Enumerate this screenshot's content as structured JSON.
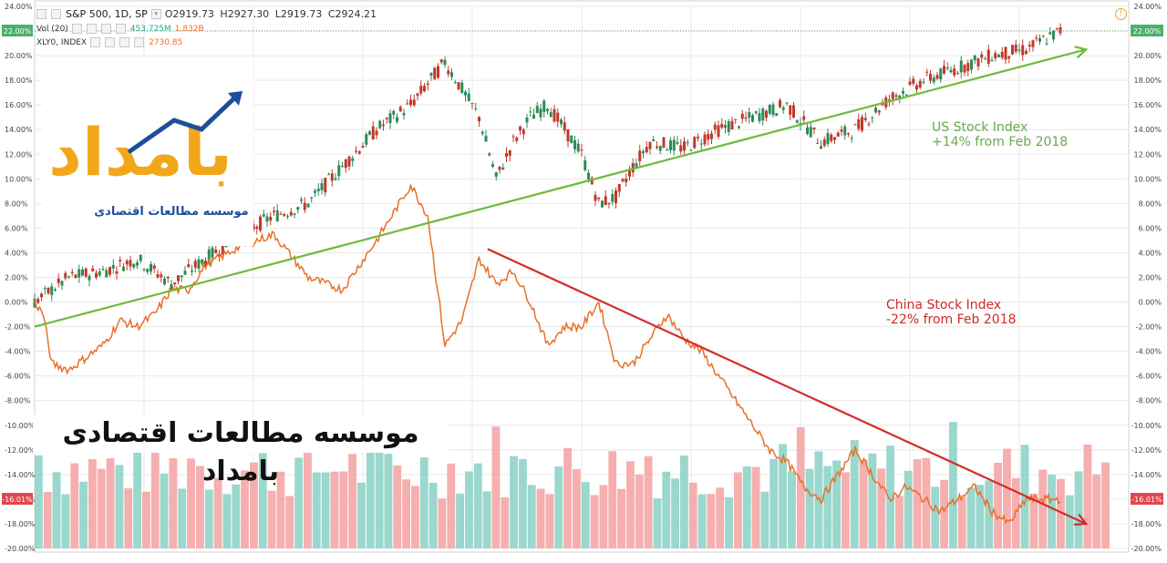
{
  "header": {
    "symbol": "S&P 500, 1D, SP",
    "open": "O2919.73",
    "high": "H2927.30",
    "low": "L2919.73",
    "close": "C2924.21",
    "volume_label": "Vol (20)",
    "volume_value": "453.725M",
    "volume_ma": "1.832B",
    "compare_label": "XLY0, INDEX",
    "compare_value": "2730.85"
  },
  "branding": {
    "logo_text": "بامداد",
    "logo_subtitle": "موسسه مطالعات اقتصادی",
    "caption": "موسسه مطالعات اقتصادی بامداد"
  },
  "colors": {
    "us_line": "#3aa33a",
    "us_trend": "#6dbb3c",
    "china_line": "#e8702a",
    "china_trend": "#d42b2b",
    "candle_up": "#2e8b57",
    "candle_down": "#c0392b",
    "vol_up": "#8fd3c8",
    "vol_down": "#f4a6a6",
    "grid": "#e8e8e8",
    "badge_green": "#4caf6a",
    "badge_red": "#e0474c"
  },
  "chart_data": {
    "type": "line",
    "x_unit": "trading days since start of chart window (not printed on axis)",
    "y_unit": "percent change",
    "ylim": [
      -20,
      24
    ],
    "y_ticks": [
      "24.00%",
      "22.00%",
      "20.00%",
      "18.00%",
      "16.00%",
      "14.00%",
      "12.00%",
      "10.00%",
      "8.00%",
      "6.00%",
      "4.00%",
      "2.00%",
      "0.00%",
      "-2.00%",
      "-4.00%",
      "-6.00%",
      "-8.00%",
      "-10.00%",
      "-12.00%",
      "-14.00%",
      "-16.00%",
      "-18.00%",
      "-20.00%"
    ],
    "last_value_badges": [
      {
        "label": "22.00%",
        "value": 22.0,
        "color": "green"
      },
      {
        "label": "-16.01%",
        "value": -16.01,
        "color": "red"
      }
    ],
    "grid": true,
    "series": [
      {
        "name": "S&P 500, 1D, SP",
        "style": "candlestick",
        "x": [
          0,
          20,
          40,
          60,
          80,
          100,
          120,
          140,
          160,
          180,
          200,
          220,
          240,
          260,
          270,
          280,
          290,
          300,
          310,
          320,
          330,
          340,
          350,
          360,
          380,
          400,
          420,
          440,
          460,
          480,
          500,
          520,
          540,
          560,
          580,
          600
        ],
        "values": [
          0,
          2,
          2.5,
          3.5,
          1.5,
          3.5,
          5.5,
          7,
          8,
          11,
          14,
          16,
          19.5,
          15,
          10,
          13,
          15,
          16,
          14,
          12,
          8,
          8.5,
          11,
          13,
          12.5,
          14,
          15,
          16,
          13,
          14,
          16.5,
          18,
          19,
          20,
          20.5,
          22
        ]
      },
      {
        "name": "XLY0, INDEX",
        "style": "line",
        "x": [
          0,
          5,
          10,
          20,
          30,
          40,
          50,
          60,
          70,
          80,
          90,
          100,
          120,
          140,
          160,
          180,
          200,
          220,
          230,
          240,
          250,
          260,
          270,
          280,
          290,
          300,
          310,
          320,
          330,
          340,
          350,
          360,
          370,
          380,
          390,
          400,
          410,
          420,
          430,
          440,
          450,
          460,
          470,
          480,
          490,
          500,
          510,
          520,
          530,
          540,
          550,
          560,
          570,
          580,
          590,
          600
        ],
        "values": [
          0,
          -1,
          -5,
          -5.5,
          -4.5,
          -3.5,
          -1.5,
          -2,
          -1,
          1,
          1,
          3,
          4.5,
          5.5,
          2,
          1,
          5,
          9.5,
          7,
          -3.5,
          -1.5,
          3.5,
          1.5,
          2.5,
          0,
          -3.5,
          -2,
          -2,
          0,
          -5,
          -5,
          -3,
          -1,
          -3,
          -4,
          -6,
          -8,
          -10,
          -12,
          -13,
          -15,
          -16,
          -14,
          -12,
          -14,
          -16,
          -15,
          -16,
          -17,
          -16,
          -15,
          -17,
          -18,
          -16,
          -16,
          -16.01
        ]
      }
    ],
    "trend_lines": [
      {
        "name": "US trend",
        "from": [
          0,
          -2
        ],
        "to": [
          615,
          20.5
        ],
        "color": "green",
        "arrow": true
      },
      {
        "name": "China trend",
        "from": [
          265,
          4.3
        ],
        "to": [
          615,
          -18
        ],
        "color": "red",
        "arrow": true
      }
    ],
    "annotations": [
      {
        "id": "us",
        "lines": [
          "US Stock Index",
          "+14% from Feb 2018"
        ],
        "color": "green"
      },
      {
        "id": "china",
        "lines": [
          "China Stock Index",
          "-22% from Feb 2018"
        ],
        "color": "red"
      }
    ],
    "volume": {
      "name": "Vol (20)",
      "bar_count": 120,
      "range_percent_axis": [
        -20,
        -9.5
      ]
    }
  }
}
